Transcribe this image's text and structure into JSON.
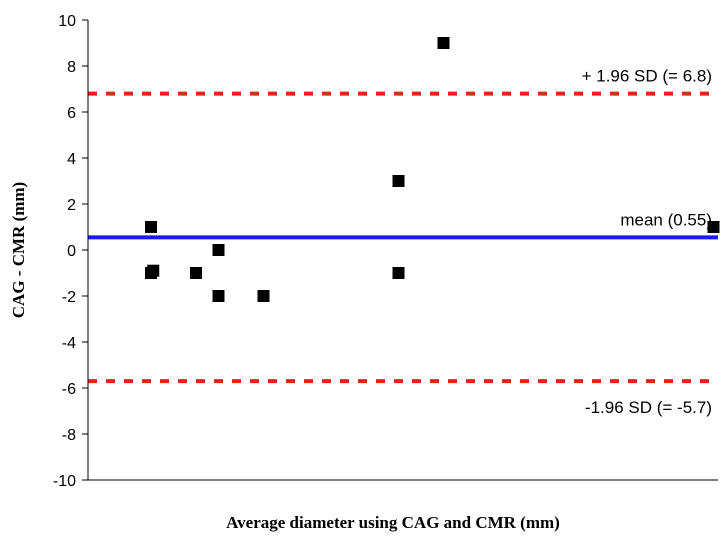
{
  "chart_data": {
    "type": "scatter",
    "title": "",
    "xlabel": "Average diameter using CAG and CMR (mm)",
    "ylabel": "CAG - CMR (mm)",
    "ylim": [
      -10,
      10
    ],
    "xlim": [
      0,
      14
    ],
    "y_ticks": [
      "10",
      "8",
      "6",
      "4",
      "2",
      "0",
      "-2",
      "-4",
      "-6",
      "-8",
      "-10"
    ],
    "x_ticks_shown": false,
    "grid": false,
    "points": [
      {
        "x": 1.4,
        "y": 1
      },
      {
        "x": 1.4,
        "y": -1
      },
      {
        "x": 1.45,
        "y": -0.9
      },
      {
        "x": 2.4,
        "y": -1
      },
      {
        "x": 2.9,
        "y": -2
      },
      {
        "x": 2.9,
        "y": 0
      },
      {
        "x": 3.9,
        "y": -2
      },
      {
        "x": 6.9,
        "y": 3
      },
      {
        "x": 6.9,
        "y": -1
      },
      {
        "x": 7.9,
        "y": 9
      },
      {
        "x": 13.9,
        "y": 1
      }
    ],
    "reference_lines": [
      {
        "label": "+ 1.96 SD (= 6.8)",
        "y": 6.8,
        "color": "#e8201a",
        "style": "dashed"
      },
      {
        "label": "mean (0.55)",
        "y": 0.55,
        "color": "#1a1aee",
        "style": "solid"
      },
      {
        "label": "-1.96 SD (= -5.7)",
        "y": -5.7,
        "color": "#e8201a",
        "style": "dashed"
      }
    ],
    "marker_color": "#000000"
  }
}
